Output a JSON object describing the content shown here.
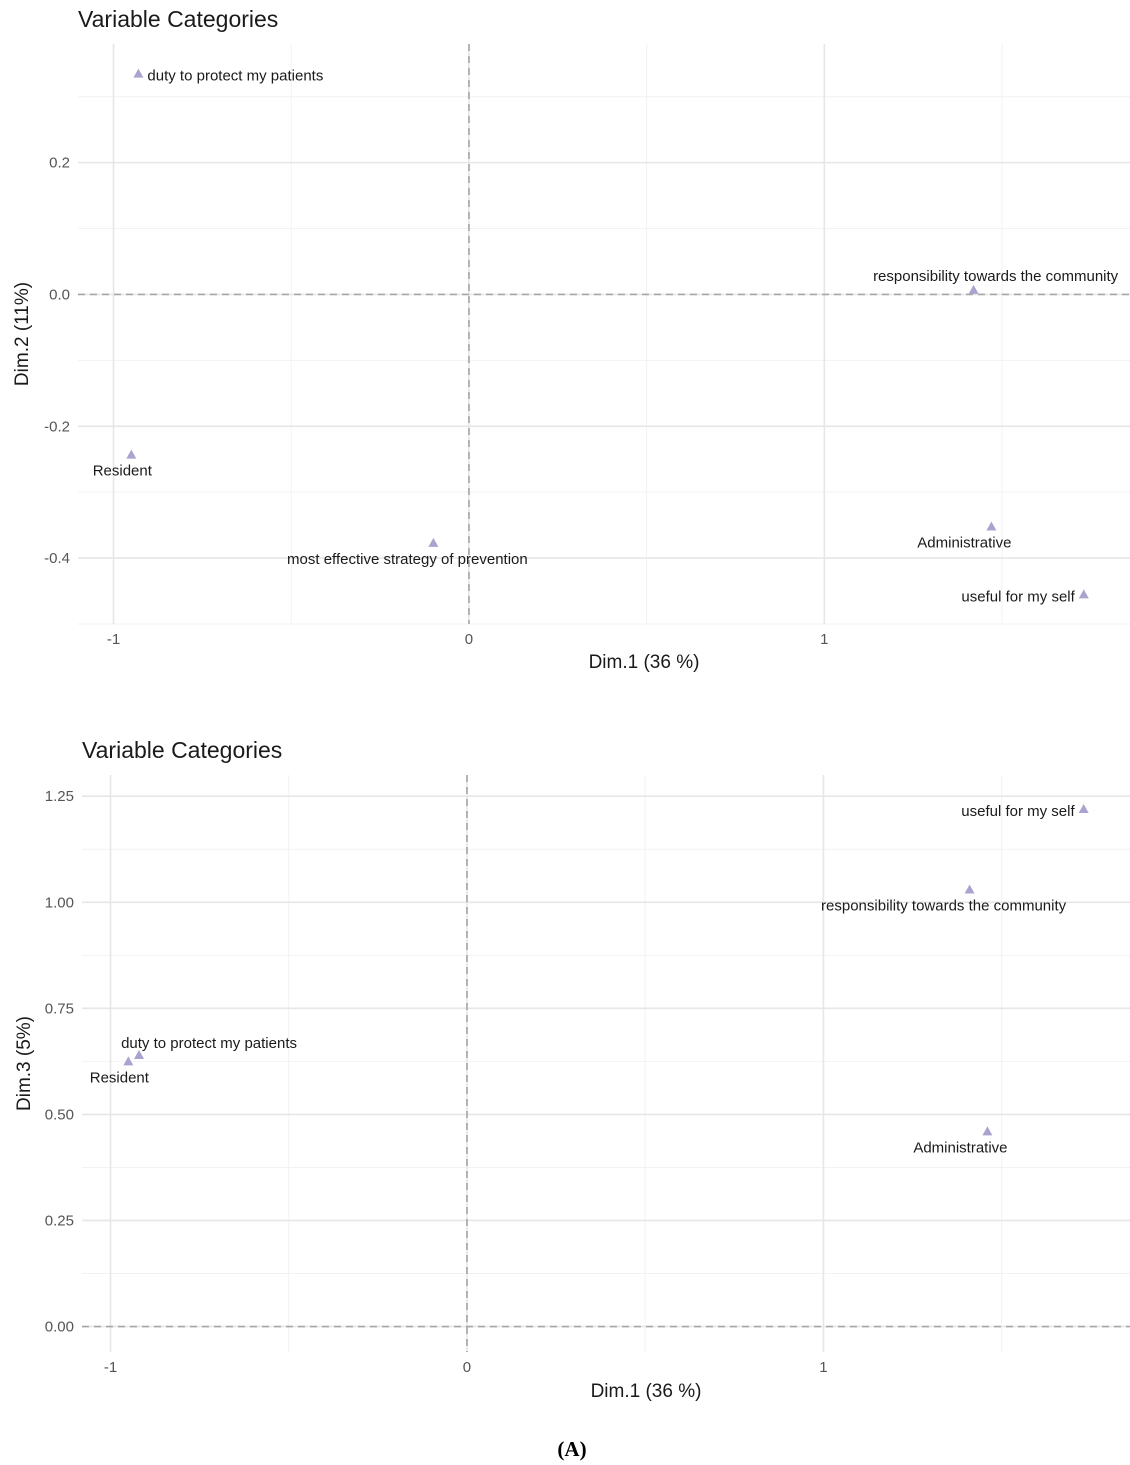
{
  "figure": {
    "caption": "(A)"
  },
  "colors": {
    "point": "#a9a4cf",
    "major_grid": "#e6e6e6",
    "minor_grid": "#f2f2f2",
    "refline": "#a6a6a6"
  },
  "chart_data": [
    {
      "type": "scatter",
      "title": "Variable Categories",
      "xlabel": "Dim.1 (36 %)",
      "ylabel": "Dim.2 (11%)",
      "xlim": [
        -1.1,
        1.86
      ],
      "ylim": [
        -0.5,
        0.38
      ],
      "x_ticks": [
        -1,
        0,
        1
      ],
      "x_tick_labels": [
        "-1",
        "0",
        "1"
      ],
      "y_ticks": [
        -0.4,
        -0.2,
        0.0,
        0.2
      ],
      "y_tick_labels": [
        "-0.4",
        "-0.2",
        "0.0",
        "0.2"
      ],
      "grid": true,
      "reference_lines": {
        "x": 0,
        "y": 0
      },
      "points": [
        {
          "label": "duty to protect my patients",
          "x": -0.93,
          "y": 0.335,
          "label_pos": "right"
        },
        {
          "label": "responsibility towards the community",
          "x": 1.42,
          "y": 0.007,
          "label_pos": "top"
        },
        {
          "label": "Resident",
          "x": -0.95,
          "y": -0.243,
          "label_pos": "below"
        },
        {
          "label": "most effective strategy of prevention",
          "x": -0.1,
          "y": -0.377,
          "label_pos": "below"
        },
        {
          "label": "Administrative",
          "x": 1.47,
          "y": -0.352,
          "label_pos": "below"
        },
        {
          "label": "useful for my self",
          "x": 1.73,
          "y": -0.455,
          "label_pos": "left"
        }
      ]
    },
    {
      "type": "scatter",
      "title": "Variable Categories",
      "xlabel": "Dim.1 (36 %)",
      "ylabel": "Dim.3 (5%)",
      "xlim": [
        -1.08,
        1.86
      ],
      "ylim": [
        -0.06,
        1.3
      ],
      "x_ticks": [
        -1,
        0,
        1
      ],
      "x_tick_labels": [
        "-1",
        "0",
        "1"
      ],
      "y_ticks": [
        0.0,
        0.25,
        0.5,
        0.75,
        1.0,
        1.25
      ],
      "y_tick_labels": [
        "0.00",
        "0.25",
        "0.50",
        "0.75",
        "1.00",
        "1.25"
      ],
      "grid": true,
      "reference_lines": {
        "x": 0,
        "y": 0
      },
      "points": [
        {
          "label": "useful for my self",
          "x": 1.73,
          "y": 1.22,
          "label_pos": "left"
        },
        {
          "label": "responsibility towards the community",
          "x": 1.41,
          "y": 1.03,
          "label_pos": "below"
        },
        {
          "label": "duty to protect my patients",
          "x": -0.92,
          "y": 0.64,
          "label_pos": "top"
        },
        {
          "label": "Resident",
          "x": -0.95,
          "y": 0.625,
          "label_pos": "below"
        },
        {
          "label": "Administrative",
          "x": 1.46,
          "y": 0.46,
          "label_pos": "below"
        }
      ]
    }
  ]
}
